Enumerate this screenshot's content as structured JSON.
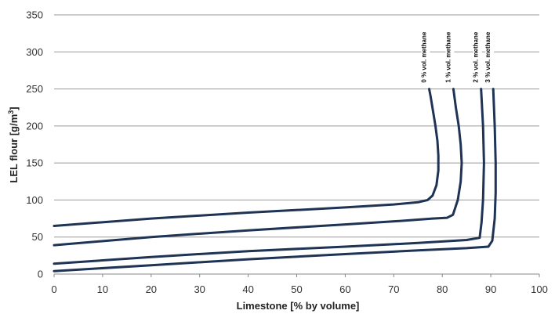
{
  "chart_data": {
    "type": "line",
    "title": "",
    "xlabel": "Limestone [% by volume]",
    "ylabel_main": "LEL flour [g/m",
    "ylabel_sup": "3",
    "ylabel_end": "]",
    "xlim": [
      0,
      100
    ],
    "ylim": [
      0,
      350
    ],
    "xticks": [
      0,
      10,
      20,
      30,
      40,
      50,
      60,
      70,
      80,
      90,
      100
    ],
    "yticks": [
      0,
      50,
      100,
      150,
      200,
      250,
      300,
      350
    ],
    "grid": "horizontal",
    "line_color": "#1f3354",
    "series": [
      {
        "name": "0 % vol. methane",
        "points": [
          [
            0,
            65
          ],
          [
            20,
            75
          ],
          [
            40,
            83
          ],
          [
            60,
            90
          ],
          [
            70,
            94
          ],
          [
            75,
            97
          ],
          [
            77,
            100
          ],
          [
            78,
            106
          ],
          [
            78.8,
            120
          ],
          [
            79.2,
            140
          ],
          [
            79.2,
            160
          ],
          [
            79.0,
            180
          ],
          [
            78.6,
            200
          ],
          [
            78.1,
            220
          ],
          [
            77.6,
            240
          ],
          [
            77.3,
            250
          ]
        ]
      },
      {
        "name": "1 % vol. methane",
        "points": [
          [
            0,
            39
          ],
          [
            20,
            50
          ],
          [
            40,
            59
          ],
          [
            60,
            67
          ],
          [
            72,
            72
          ],
          [
            78,
            75
          ],
          [
            81,
            76
          ],
          [
            82.2,
            80
          ],
          [
            83.2,
            100
          ],
          [
            83.8,
            125
          ],
          [
            84.0,
            150
          ],
          [
            83.8,
            175
          ],
          [
            83.4,
            200
          ],
          [
            82.8,
            225
          ],
          [
            82.3,
            250
          ]
        ]
      },
      {
        "name": "2 % vol. methane",
        "points": [
          [
            0,
            14
          ],
          [
            20,
            23
          ],
          [
            40,
            31
          ],
          [
            60,
            37
          ],
          [
            75,
            42
          ],
          [
            85,
            46
          ],
          [
            87.7,
            49
          ],
          [
            88.1,
            70
          ],
          [
            88.4,
            100
          ],
          [
            88.6,
            150
          ],
          [
            88.4,
            200
          ],
          [
            88.0,
            250
          ]
        ]
      },
      {
        "name": "3 % vol. methane",
        "points": [
          [
            0,
            4
          ],
          [
            20,
            12
          ],
          [
            40,
            20
          ],
          [
            60,
            27
          ],
          [
            75,
            32
          ],
          [
            85,
            35
          ],
          [
            89.5,
            37
          ],
          [
            90.3,
            45
          ],
          [
            90.8,
            75
          ],
          [
            91.0,
            110
          ],
          [
            91.0,
            150
          ],
          [
            90.8,
            200
          ],
          [
            90.5,
            250
          ]
        ]
      }
    ]
  }
}
